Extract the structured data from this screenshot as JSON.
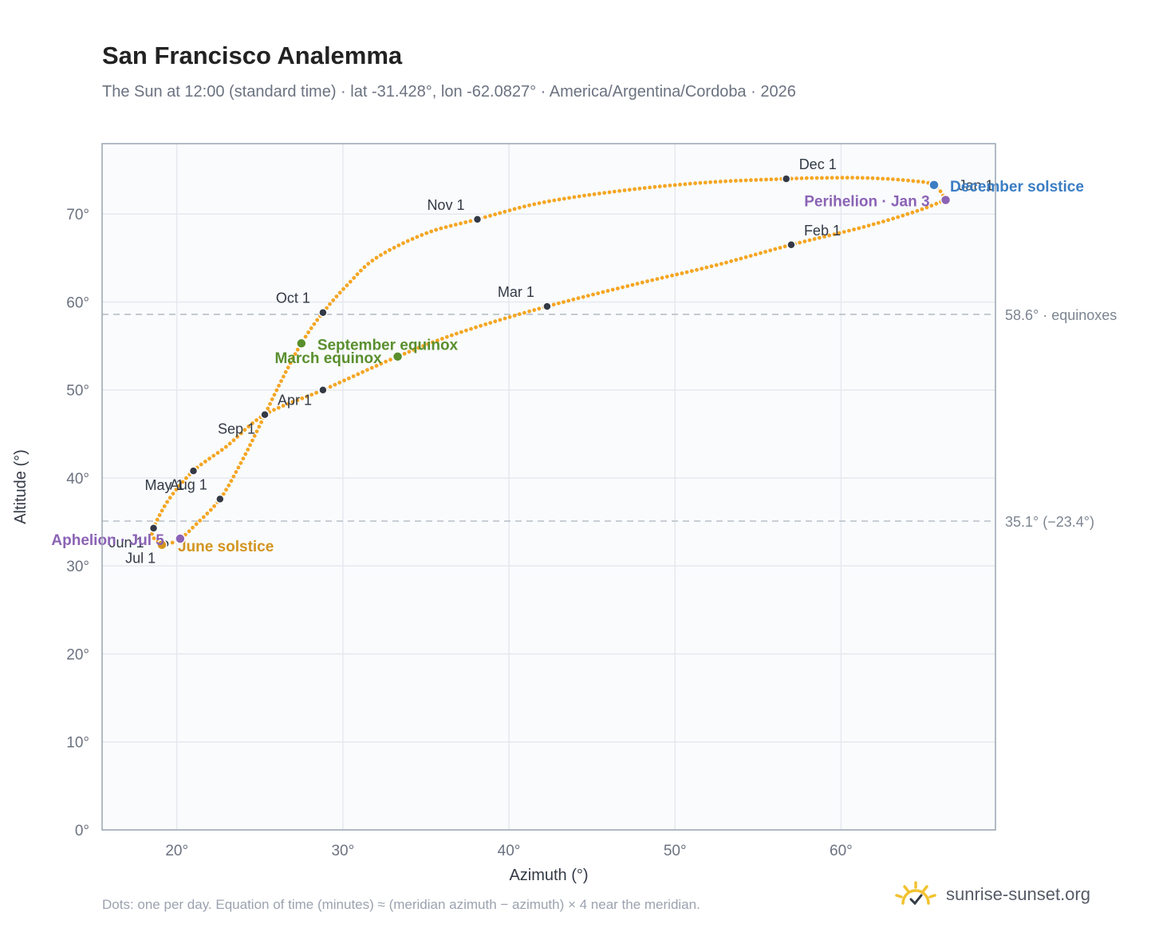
{
  "title": "San Francisco Analemma",
  "subtitle": "The Sun at 12:00 (standard time) · lat -31.428°, lon -62.0827° · America/Argentina/Cordoba · 2026",
  "footer_note": "Dots: one per day. Equation of time (minutes) ≈ (meridian azimuth − azimuth) × 4 near the meridian.",
  "brand": {
    "name": "sunrise-sunset.org",
    "icon": "sun-logo-icon",
    "color": "#f2c230"
  },
  "colors": {
    "curve": "#f5a623",
    "month_marker": "#333a45",
    "equinox": "#5a8f2e",
    "june_solstice": "#d4941f",
    "december_solstice": "#3b7dc4",
    "apsis": "#8b63b5",
    "reference_line": "#b8bfc7",
    "grid": "#e5e9ee",
    "plot_bg": "#f9fbfd",
    "axis_frame": "#9aa5b4"
  },
  "chart_data": {
    "type": "scatter",
    "xlabel": "Azimuth (°)",
    "ylabel": "Altitude (°)",
    "xlim": [
      15.5,
      69.3
    ],
    "ylim": [
      0,
      78
    ],
    "x_ticks": [
      20,
      30,
      40,
      50,
      60
    ],
    "y_ticks": [
      0,
      10,
      20,
      30,
      40,
      50,
      60,
      70
    ],
    "tick_suffix": "°",
    "grid": true,
    "series": [
      {
        "type": "line",
        "style": "one dot per day",
        "path": [
          {
            "x": 66.3,
            "y": 71.6
          },
          {
            "x": 65.6,
            "y": 73.3
          },
          {
            "x": 64.1,
            "y": 73.8
          },
          {
            "x": 61.5,
            "y": 74.1
          },
          {
            "x": 58.8,
            "y": 74.1
          },
          {
            "x": 56.7,
            "y": 74.0
          },
          {
            "x": 52.0,
            "y": 73.6
          },
          {
            "x": 47.0,
            "y": 72.7
          },
          {
            "x": 42.0,
            "y": 71.3
          },
          {
            "x": 38.1,
            "y": 69.4
          },
          {
            "x": 35.0,
            "y": 67.8
          },
          {
            "x": 32.0,
            "y": 65.0
          },
          {
            "x": 30.3,
            "y": 62.0
          },
          {
            "x": 28.8,
            "y": 58.8
          },
          {
            "x": 27.5,
            "y": 55.3
          },
          {
            "x": 26.2,
            "y": 50.7
          },
          {
            "x": 25.0,
            "y": 46.0
          },
          {
            "x": 23.8,
            "y": 41.5
          },
          {
            "x": 22.6,
            "y": 37.6
          },
          {
            "x": 21.2,
            "y": 34.8
          },
          {
            "x": 20.2,
            "y": 33.1
          },
          {
            "x": 19.3,
            "y": 32.5
          },
          {
            "x": 18.6,
            "y": 33.2
          },
          {
            "x": 18.6,
            "y": 34.3
          },
          {
            "x": 19.5,
            "y": 37.5
          },
          {
            "x": 21.0,
            "y": 40.8
          },
          {
            "x": 23.0,
            "y": 43.6
          },
          {
            "x": 25.3,
            "y": 47.2
          },
          {
            "x": 28.8,
            "y": 50.0
          },
          {
            "x": 33.3,
            "y": 53.8
          },
          {
            "x": 37.0,
            "y": 56.5
          },
          {
            "x": 42.3,
            "y": 59.5
          },
          {
            "x": 48.0,
            "y": 62.2
          },
          {
            "x": 52.5,
            "y": 64.2
          },
          {
            "x": 57.0,
            "y": 66.5
          },
          {
            "x": 61.5,
            "y": 68.6
          },
          {
            "x": 64.5,
            "y": 70.3
          },
          {
            "x": 66.3,
            "y": 71.6
          }
        ]
      }
    ],
    "month_markers": [
      {
        "label": "Jan 1",
        "x": 66.3,
        "y": 71.6,
        "label_pos": "upper-right"
      },
      {
        "label": "Feb 1",
        "x": 57.0,
        "y": 66.5,
        "label_pos": "upper-right"
      },
      {
        "label": "Mar 1",
        "x": 42.3,
        "y": 59.5,
        "label_pos": "upper-left"
      },
      {
        "label": "",
        "x": 28.8,
        "y": 50.0,
        "label_pos": "none"
      },
      {
        "label": "Apr 1",
        "x": 25.3,
        "y": 47.2,
        "label_pos": "upper-right"
      },
      {
        "label": "May 1",
        "x": 21.0,
        "y": 40.8,
        "label_pos": "lower-left"
      },
      {
        "label": "Jun 1",
        "x": 18.6,
        "y": 34.3,
        "label_pos": "lower-left"
      },
      {
        "label": "Jul 1",
        "x": 19.3,
        "y": 32.5,
        "label_pos": "lower-left"
      },
      {
        "label": "Aug 1",
        "x": 22.6,
        "y": 37.6,
        "label_pos": "upper-left"
      },
      {
        "label": "Sep 1",
        "x": 25.3,
        "y": 47.2,
        "label_pos": "lower-left"
      },
      {
        "label": "Oct 1",
        "x": 28.8,
        "y": 58.8,
        "label_pos": "upper-left"
      },
      {
        "label": "Nov 1",
        "x": 38.1,
        "y": 69.4,
        "label_pos": "upper-left"
      },
      {
        "label": "Dec 1",
        "x": 56.7,
        "y": 74.0,
        "label_pos": "upper-right"
      }
    ],
    "events": [
      {
        "label": "September equinox",
        "x": 27.5,
        "y": 55.3,
        "color": "#5a8f2e",
        "label_pos": "right"
      },
      {
        "label": "March equinox",
        "x": 33.3,
        "y": 53.8,
        "color": "#5a8f2e",
        "label_pos": "left"
      },
      {
        "label": "June solstice",
        "x": 19.1,
        "y": 32.4,
        "color": "#d4941f",
        "label_pos": "right"
      },
      {
        "label": "Aphelion · Jul 5",
        "x": 20.2,
        "y": 33.1,
        "color": "#8b63b5",
        "label_pos": "left"
      },
      {
        "label": "December solstice",
        "x": 65.6,
        "y": 73.3,
        "color": "#3b7dc4",
        "label_pos": "right"
      },
      {
        "label": "Perihelion · Jan 3",
        "x": 66.3,
        "y": 71.6,
        "color": "#8b63b5",
        "label_pos": "left"
      }
    ],
    "reference_lines": [
      {
        "y": 58.6,
        "label": "58.6° · equinoxes"
      },
      {
        "y": 35.1,
        "label": "35.1° (−23.4°)"
      }
    ]
  }
}
